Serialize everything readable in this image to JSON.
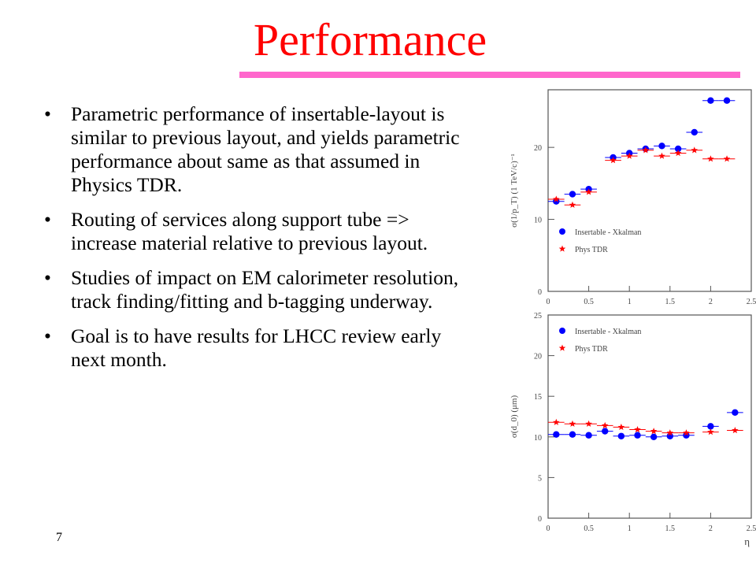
{
  "slide": {
    "title": "Performance",
    "accent_color": "#ff0000",
    "rule_color": "#ff66cc",
    "bullet_char": "•",
    "bullets": [
      "Parametric performance of insertable-layout is similar to previous layout, and yields parametric performance about same as that assumed in Physics TDR.",
      "Routing of services along support tube => increase material relative to previous layout.",
      "Studies of impact on EM calorimeter resolution, track finding/fitting and b-tagging underway.",
      "Goal is to have results for LHCC review early next month."
    ],
    "page_number": "7"
  },
  "chart_data": [
    {
      "type": "scatter",
      "ylabel": "σ(1/p_T) (1 TeV/c)⁻¹",
      "xlabel": "",
      "xlim": [
        0,
        2.5
      ],
      "ylim": [
        0,
        28
      ],
      "xticks": [
        "0",
        "0.5",
        "1",
        "1.5",
        "2",
        "2.5"
      ],
      "yticks": [
        "0",
        "10",
        "20"
      ],
      "legend_position": "middle-left",
      "series": [
        {
          "name": "Insertable - Xkalman",
          "marker": "circle",
          "color": "#0000ff",
          "x": [
            0.1,
            0.3,
            0.5,
            0.8,
            1.0,
            1.2,
            1.4,
            1.6,
            1.8,
            2.0,
            2.2
          ],
          "y": [
            12.5,
            13.5,
            14.2,
            18.6,
            19.2,
            19.8,
            20.2,
            19.8,
            22.1,
            26.5,
            26.5
          ],
          "xerr": 0.1
        },
        {
          "name": "Phys TDR",
          "marker": "star",
          "color": "#ff0000",
          "x": [
            0.1,
            0.3,
            0.5,
            0.8,
            1.0,
            1.2,
            1.4,
            1.6,
            1.8,
            2.0,
            2.2
          ],
          "y": [
            12.8,
            12.0,
            13.8,
            18.2,
            18.8,
            19.6,
            18.8,
            19.2,
            19.6,
            18.4,
            18.4
          ],
          "xerr": 0.1
        }
      ]
    },
    {
      "type": "scatter",
      "ylabel": "σ(d_0) (μm)",
      "xlabel": "η",
      "xlim": [
        0,
        2.5
      ],
      "ylim": [
        0,
        25
      ],
      "xticks": [
        "0",
        "0.5",
        "1",
        "1.5",
        "2",
        "2.5"
      ],
      "yticks": [
        "0",
        "5",
        "10",
        "15",
        "20",
        "25"
      ],
      "legend_position": "top-left",
      "series": [
        {
          "name": "Insertable - Xkalman",
          "marker": "circle",
          "color": "#0000ff",
          "x": [
            0.1,
            0.3,
            0.5,
            0.7,
            0.9,
            1.1,
            1.3,
            1.5,
            1.7,
            2.0,
            2.3
          ],
          "y": [
            10.3,
            10.3,
            10.2,
            10.7,
            10.1,
            10.2,
            10.0,
            10.1,
            10.2,
            11.3,
            13.0
          ],
          "xerr": 0.1
        },
        {
          "name": "Phys TDR",
          "marker": "star",
          "color": "#ff0000",
          "x": [
            0.1,
            0.3,
            0.5,
            0.7,
            0.9,
            1.1,
            1.3,
            1.5,
            1.7,
            2.0,
            2.3
          ],
          "y": [
            11.8,
            11.6,
            11.6,
            11.4,
            11.2,
            10.9,
            10.7,
            10.5,
            10.5,
            10.6,
            10.8
          ],
          "xerr": 0.1
        }
      ]
    }
  ]
}
